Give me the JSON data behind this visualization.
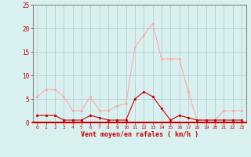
{
  "hours": [
    0,
    1,
    2,
    3,
    4,
    5,
    6,
    7,
    8,
    9,
    10,
    11,
    12,
    13,
    14,
    15,
    16,
    17,
    18,
    19,
    20,
    21,
    22,
    23
  ],
  "vent_moyen": [
    1.5,
    1.5,
    1.5,
    0.5,
    0.5,
    0.5,
    1.5,
    1.0,
    0.5,
    0.5,
    0.5,
    5.0,
    6.5,
    5.5,
    3.0,
    0.5,
    1.5,
    1.0,
    0.5,
    0.5,
    0.5,
    0.5,
    0.5,
    0.5
  ],
  "en_rafales": [
    5.5,
    7.0,
    7.0,
    5.5,
    2.5,
    2.5,
    5.5,
    2.5,
    2.5,
    3.5,
    4.0,
    16.0,
    18.5,
    21.0,
    13.5,
    13.5,
    13.5,
    6.5,
    0.5,
    0.5,
    0.5,
    2.5,
    2.5,
    2.5
  ],
  "color_moyen": "#cc0000",
  "color_rafales": "#ffaaaa",
  "background_color": "#d8f0f0",
  "grid_color": "#b0c8c8",
  "xlabel": "Vent moyen/en rafales ( km/h )",
  "ylim": [
    0,
    25
  ],
  "yticks": [
    0,
    5,
    10,
    15,
    20,
    25
  ],
  "tick_color": "#cc0000",
  "xlabel_color": "#cc0000",
  "spine_color": "#888888",
  "bottom_spine_color": "#cc0000"
}
